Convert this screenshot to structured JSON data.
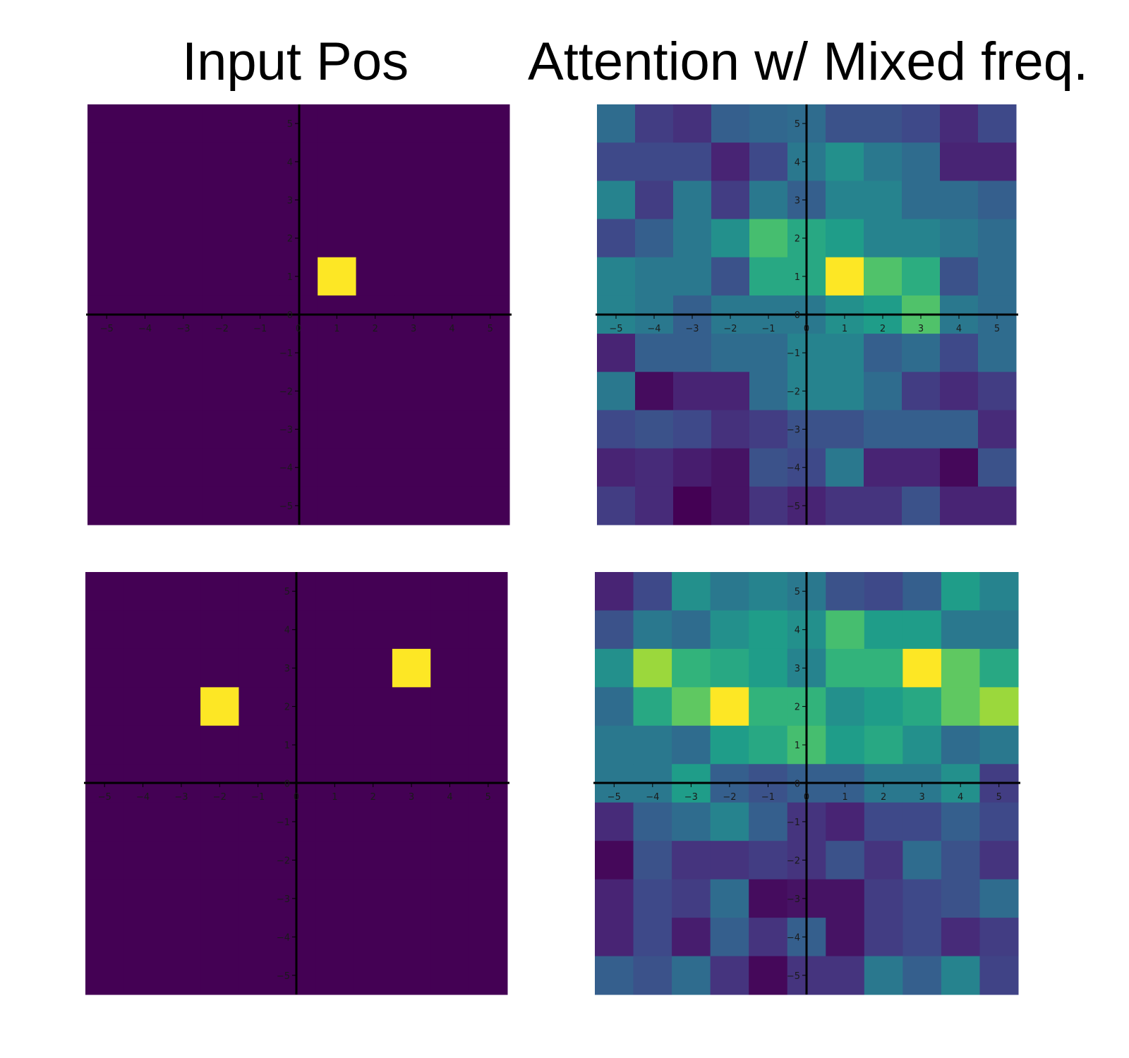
{
  "titles": {
    "left": "Input Pos",
    "right": "Attention w/ Mixed freq."
  },
  "colormap": "viridis",
  "chart_data": [
    {
      "type": "heatmap",
      "title": "",
      "xlim": [
        -5.5,
        5.5
      ],
      "ylim": [
        -5.5,
        5.5
      ],
      "xticks": [
        -5,
        -4,
        -3,
        -2,
        -1,
        0,
        1,
        2,
        3,
        4,
        5
      ],
      "yticks": [
        -5,
        -4,
        -3,
        -2,
        -1,
        0,
        1,
        2,
        3,
        4,
        5
      ],
      "grid": false,
      "legend": "none",
      "rows_y": [
        5,
        4,
        3,
        2,
        1,
        0,
        -1,
        -2,
        -3,
        -4,
        -5
      ],
      "cols_x": [
        -5,
        -4,
        -3,
        -2,
        -1,
        0,
        1,
        2,
        3,
        4,
        5
      ],
      "values": [
        [
          0,
          0,
          0,
          0,
          0,
          0,
          0,
          0,
          0,
          0,
          0
        ],
        [
          0,
          0,
          0,
          0,
          0,
          0,
          0,
          0,
          0,
          0,
          0
        ],
        [
          0,
          0,
          0,
          0,
          0,
          0,
          0,
          0,
          0,
          0,
          0
        ],
        [
          0,
          0,
          0,
          0,
          0,
          0,
          0,
          0,
          0,
          0,
          0
        ],
        [
          0,
          0,
          0,
          0,
          0,
          0,
          1,
          0,
          0,
          0,
          0
        ],
        [
          0,
          0,
          0,
          0,
          0,
          0,
          0,
          0,
          0,
          0,
          0
        ],
        [
          0,
          0,
          0,
          0,
          0,
          0,
          0,
          0,
          0,
          0,
          0
        ],
        [
          0,
          0,
          0,
          0,
          0,
          0,
          0,
          0,
          0,
          0,
          0
        ],
        [
          0,
          0,
          0,
          0,
          0,
          0,
          0,
          0,
          0,
          0,
          0
        ],
        [
          0,
          0,
          0,
          0,
          0,
          0,
          0,
          0,
          0,
          0,
          0
        ],
        [
          0,
          0,
          0,
          0,
          0,
          0,
          0,
          0,
          0,
          0,
          0
        ]
      ]
    },
    {
      "type": "heatmap",
      "title": "",
      "xlim": [
        -5.5,
        5.5
      ],
      "ylim": [
        -5.5,
        5.5
      ],
      "xticks": [
        -5,
        -4,
        -3,
        -2,
        -1,
        0,
        1,
        2,
        3,
        4,
        5
      ],
      "yticks": [
        -5,
        -4,
        -3,
        -2,
        -1,
        0,
        1,
        2,
        3,
        4,
        5
      ],
      "grid": false,
      "legend": "none",
      "rows_y": [
        5,
        4,
        3,
        2,
        1,
        0,
        -1,
        -2,
        -3,
        -4,
        -5
      ],
      "cols_x": [
        -5,
        -4,
        -3,
        -2,
        -1,
        0,
        1,
        2,
        3,
        4,
        5
      ],
      "values": [
        [
          0.35,
          0.18,
          0.14,
          0.3,
          0.33,
          0.35,
          0.25,
          0.25,
          0.22,
          0.12,
          0.22
        ],
        [
          0.22,
          0.22,
          0.22,
          0.1,
          0.22,
          0.4,
          0.5,
          0.4,
          0.35,
          0.1,
          0.1
        ],
        [
          0.45,
          0.18,
          0.4,
          0.18,
          0.4,
          0.3,
          0.45,
          0.45,
          0.35,
          0.35,
          0.3
        ],
        [
          0.22,
          0.3,
          0.4,
          0.5,
          0.7,
          0.6,
          0.55,
          0.45,
          0.45,
          0.4,
          0.35
        ],
        [
          0.45,
          0.4,
          0.4,
          0.25,
          0.6,
          0.6,
          1.0,
          0.72,
          0.62,
          0.25,
          0.35
        ],
        [
          0.45,
          0.4,
          0.3,
          0.4,
          0.4,
          0.4,
          0.5,
          0.55,
          0.72,
          0.4,
          0.35
        ],
        [
          0.1,
          0.3,
          0.3,
          0.35,
          0.35,
          0.45,
          0.45,
          0.3,
          0.35,
          0.22,
          0.35
        ],
        [
          0.4,
          0.03,
          0.1,
          0.1,
          0.35,
          0.45,
          0.45,
          0.35,
          0.18,
          0.12,
          0.18
        ],
        [
          0.22,
          0.25,
          0.22,
          0.14,
          0.18,
          0.25,
          0.25,
          0.3,
          0.3,
          0.3,
          0.12
        ],
        [
          0.1,
          0.12,
          0.08,
          0.05,
          0.25,
          0.22,
          0.4,
          0.1,
          0.1,
          0.02,
          0.25
        ],
        [
          0.18,
          0.12,
          0.0,
          0.05,
          0.15,
          0.1,
          0.15,
          0.15,
          0.25,
          0.1,
          0.1
        ]
      ]
    },
    {
      "type": "heatmap",
      "title": "",
      "xlim": [
        -5.5,
        5.5
      ],
      "ylim": [
        -5.5,
        5.5
      ],
      "xticks": [
        -5,
        -4,
        -3,
        -2,
        -1,
        0,
        1,
        2,
        3,
        4,
        5
      ],
      "yticks": [
        -5,
        -4,
        -3,
        -2,
        -1,
        0,
        1,
        2,
        3,
        4,
        5
      ],
      "grid": false,
      "legend": "none",
      "rows_y": [
        5,
        4,
        3,
        2,
        1,
        0,
        -1,
        -2,
        -3,
        -4,
        -5
      ],
      "cols_x": [
        -5,
        -4,
        -3,
        -2,
        -1,
        0,
        1,
        2,
        3,
        4,
        5
      ],
      "values": [
        [
          0,
          0,
          0,
          0,
          0,
          0,
          0,
          0,
          0,
          0,
          0
        ],
        [
          0,
          0,
          0,
          0,
          0,
          0,
          0,
          0,
          0,
          0,
          0
        ],
        [
          0,
          0,
          0,
          0,
          0,
          0,
          0,
          0,
          1,
          0,
          0
        ],
        [
          0,
          0,
          0,
          1,
          0,
          0,
          0,
          0,
          0,
          0,
          0
        ],
        [
          0,
          0,
          0,
          0,
          0,
          0,
          0,
          0,
          0,
          0,
          0
        ],
        [
          0,
          0,
          0,
          0,
          0,
          0,
          0,
          0,
          0,
          0,
          0
        ],
        [
          0,
          0,
          0,
          0,
          0,
          0,
          0,
          0,
          0,
          0,
          0
        ],
        [
          0,
          0,
          0,
          0,
          0,
          0,
          0,
          0,
          0,
          0,
          0
        ],
        [
          0,
          0,
          0,
          0,
          0,
          0,
          0,
          0,
          0,
          0,
          0
        ],
        [
          0,
          0,
          0,
          0,
          0,
          0,
          0,
          0,
          0,
          0,
          0
        ],
        [
          0,
          0,
          0,
          0,
          0,
          0,
          0,
          0,
          0,
          0,
          0
        ]
      ]
    },
    {
      "type": "heatmap",
      "title": "",
      "xlim": [
        -5.5,
        5.5
      ],
      "ylim": [
        -5.5,
        5.5
      ],
      "xticks": [
        -5,
        -4,
        -3,
        -2,
        -1,
        0,
        1,
        2,
        3,
        4,
        5
      ],
      "yticks": [
        -5,
        -4,
        -3,
        -2,
        -1,
        0,
        1,
        2,
        3,
        4,
        5
      ],
      "grid": false,
      "legend": "none",
      "rows_y": [
        5,
        4,
        3,
        2,
        1,
        0,
        -1,
        -2,
        -3,
        -4,
        -5
      ],
      "cols_x": [
        -5,
        -4,
        -3,
        -2,
        -1,
        0,
        1,
        2,
        3,
        4,
        5
      ],
      "values": [
        [
          0.1,
          0.22,
          0.5,
          0.4,
          0.45,
          0.4,
          0.25,
          0.22,
          0.3,
          0.55,
          0.45
        ],
        [
          0.25,
          0.4,
          0.35,
          0.5,
          0.55,
          0.5,
          0.7,
          0.55,
          0.55,
          0.4,
          0.4
        ],
        [
          0.5,
          0.85,
          0.65,
          0.6,
          0.55,
          0.45,
          0.65,
          0.65,
          1.0,
          0.75,
          0.6
        ],
        [
          0.35,
          0.6,
          0.75,
          1.0,
          0.65,
          0.65,
          0.5,
          0.55,
          0.6,
          0.75,
          0.85
        ],
        [
          0.4,
          0.4,
          0.35,
          0.55,
          0.6,
          0.7,
          0.55,
          0.6,
          0.5,
          0.35,
          0.4
        ],
        [
          0.4,
          0.4,
          0.55,
          0.3,
          0.25,
          0.3,
          0.3,
          0.4,
          0.4,
          0.5,
          0.18
        ],
        [
          0.12,
          0.3,
          0.35,
          0.45,
          0.3,
          0.15,
          0.1,
          0.22,
          0.22,
          0.3,
          0.22
        ],
        [
          0.02,
          0.25,
          0.15,
          0.15,
          0.18,
          0.15,
          0.25,
          0.15,
          0.35,
          0.25,
          0.15
        ],
        [
          0.1,
          0.22,
          0.18,
          0.35,
          0.03,
          0.05,
          0.05,
          0.18,
          0.22,
          0.25,
          0.35
        ],
        [
          0.1,
          0.22,
          0.08,
          0.3,
          0.15,
          0.3,
          0.05,
          0.18,
          0.22,
          0.12,
          0.18
        ],
        [
          0.3,
          0.25,
          0.35,
          0.15,
          0.02,
          0.15,
          0.15,
          0.4,
          0.3,
          0.45,
          0.2
        ]
      ]
    }
  ]
}
